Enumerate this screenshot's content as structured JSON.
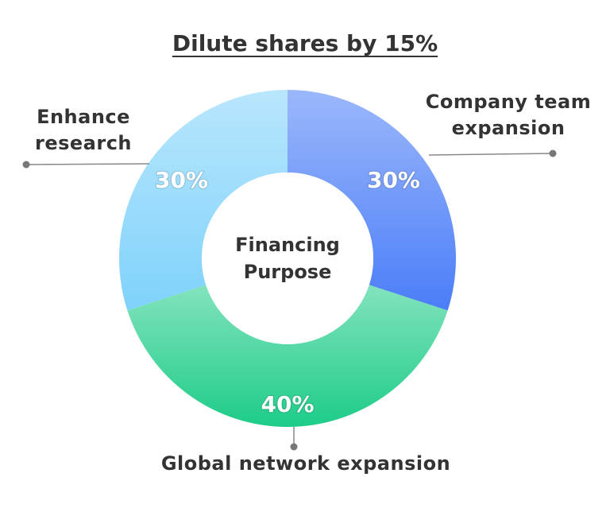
{
  "chart_data": {
    "type": "donut",
    "title": "Dilute shares by 15%",
    "center_label": [
      "Financing",
      "Purpose"
    ],
    "categories": [
      "Company team expansion",
      "Global network expansion",
      "Enhance research"
    ],
    "values": [
      30,
      40,
      30
    ],
    "value_labels": [
      "30%",
      "40%",
      "30%"
    ],
    "colors": [
      "#4a7df8",
      "#1dcc88",
      "#7fd2fb"
    ]
  }
}
